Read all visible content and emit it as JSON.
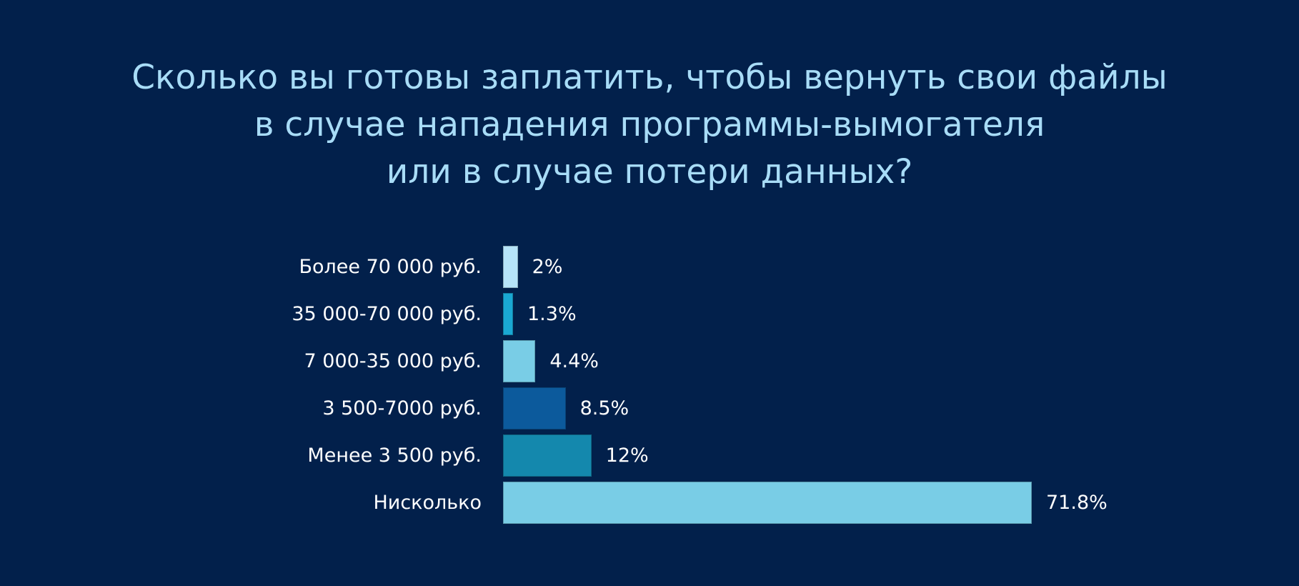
{
  "title": {
    "line1": "Сколько вы готовы заплатить, чтобы вернуть свои файлы",
    "line2": "в случае нападения программы-вымогателя",
    "line3": "или в случае потери данных?"
  },
  "bars": [
    {
      "label": "Более 70 000 руб.",
      "value_label": "2%",
      "value": 2,
      "color": "#b6e4f9"
    },
    {
      "label": "35 000-70 000 руб.",
      "value_label": "1.3%",
      "value": 1.3,
      "color": "#1aa8d3"
    },
    {
      "label": "7 000-35 000 руб.",
      "value_label": "4.4%",
      "value": 4.4,
      "color": "#79cde6"
    },
    {
      "label": "3 500-7000 руб.",
      "value_label": "8.5%",
      "value": 8.5,
      "color": "#0c5a9c"
    },
    {
      "label": "Менее 3 500 руб.",
      "value_label": "12%",
      "value": 12,
      "color": "#1488ad"
    },
    {
      "label": "Нисколько",
      "value_label": "71.8%",
      "value": 71.8,
      "color": "#79cde6"
    }
  ],
  "chart_data": {
    "type": "bar",
    "orientation": "horizontal",
    "title": "Сколько вы готовы заплатить, чтобы вернуть свои файлы в случае нападения программы-вымогателя или в случае потери данных?",
    "categories": [
      "Более 70 000 руб.",
      "35 000-70 000 руб.",
      "7 000-35 000 руб.",
      "3 500-7000 руб.",
      "Менее 3 500 руб.",
      "Нисколько"
    ],
    "values": [
      2,
      1.3,
      4.4,
      8.5,
      12,
      71.8
    ],
    "unit": "%",
    "xlabel": "",
    "ylabel": "",
    "grid": false,
    "legend": null,
    "data_labels": [
      "2%",
      "1.3%",
      "4.4%",
      "8.5%",
      "12%",
      "71.8%"
    ],
    "colors": [
      "#b6e4f9",
      "#1aa8d3",
      "#79cde6",
      "#0c5a9c",
      "#1488ad",
      "#79cde6"
    ]
  }
}
